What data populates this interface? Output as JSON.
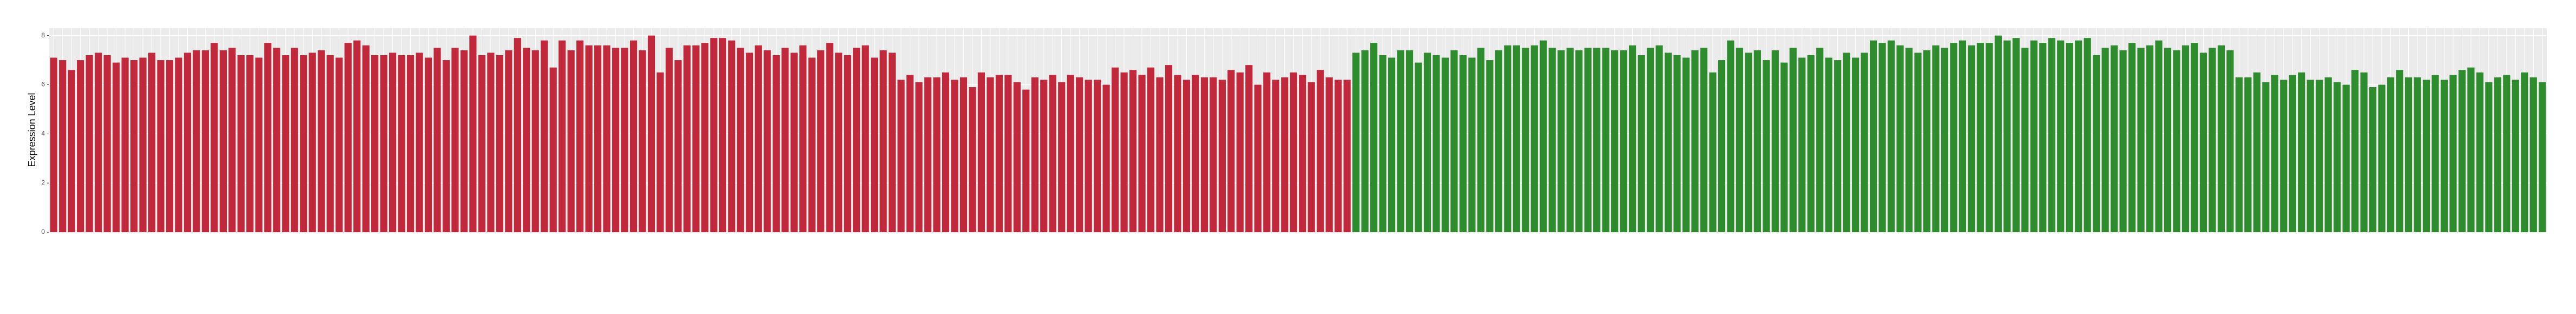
{
  "chart_data": {
    "type": "bar",
    "y_label": "Expression Level",
    "ylim": [
      0,
      8.3
    ],
    "yticks": [
      0,
      2,
      4,
      6,
      8
    ],
    "grid": true,
    "groups": [
      {
        "color": "#c0283c",
        "values": [
          7.1,
          7.0,
          6.6,
          7.0,
          7.2,
          7.3,
          7.2,
          6.9,
          7.1,
          7.0,
          7.1,
          7.3,
          7.0,
          7.0,
          7.1,
          7.3,
          7.4,
          7.4,
          7.7,
          7.4,
          7.5,
          7.2,
          7.2,
          7.1,
          7.7,
          7.5,
          7.2,
          7.5,
          7.2,
          7.3,
          7.4,
          7.2,
          7.1,
          7.7,
          7.8,
          7.6,
          7.2,
          7.2,
          7.3,
          7.2,
          7.2,
          7.3,
          7.1,
          7.5,
          7.0,
          7.5,
          7.4,
          8.0,
          7.2,
          7.3,
          7.2,
          7.4,
          7.9,
          7.5,
          7.4,
          7.8,
          6.7,
          7.8,
          7.4,
          7.8,
          7.6,
          7.6,
          7.6,
          7.5,
          7.5,
          7.8,
          7.4,
          8.0,
          6.5,
          7.5,
          7.0,
          7.6,
          7.6,
          7.7,
          7.9,
          7.9,
          7.8,
          7.5,
          7.3,
          7.6,
          7.4,
          7.2,
          7.5,
          7.3,
          7.6,
          7.1,
          7.4,
          7.7,
          7.3,
          7.2,
          7.5,
          7.6,
          7.1,
          7.4,
          7.3,
          6.2,
          6.4,
          6.1,
          6.3,
          6.3,
          6.5,
          6.2,
          6.3,
          5.9,
          6.5,
          6.3,
          6.4,
          6.4,
          6.1,
          5.8,
          6.3,
          6.2,
          6.4,
          6.1,
          6.4,
          6.3,
          6.2,
          6.2,
          6.0,
          6.7,
          6.5,
          6.6,
          6.4,
          6.7,
          6.3,
          6.8,
          6.4,
          6.2,
          6.4,
          6.3,
          6.3,
          6.2,
          6.6,
          6.5,
          6.8,
          6.0,
          6.5,
          6.2,
          6.3,
          6.5,
          6.4,
          6.1,
          6.6,
          6.3,
          6.2,
          6.2
        ]
      },
      {
        "color": "#2e8b2e",
        "values": [
          7.3,
          7.4,
          7.7,
          7.2,
          7.1,
          7.4,
          7.4,
          6.9,
          7.3,
          7.2,
          7.1,
          7.4,
          7.2,
          7.1,
          7.5,
          7.0,
          7.4,
          7.6,
          7.6,
          7.5,
          7.6,
          7.8,
          7.5,
          7.4,
          7.5,
          7.4,
          7.5,
          7.5,
          7.5,
          7.4,
          7.4,
          7.6,
          7.2,
          7.5,
          7.6,
          7.3,
          7.2,
          7.1,
          7.4,
          7.5,
          6.5,
          7.0,
          7.8,
          7.5,
          7.3,
          7.4,
          7.0,
          7.4,
          6.9,
          7.5,
          7.1,
          7.2,
          7.5,
          7.1,
          7.0,
          7.3,
          7.1,
          7.3,
          7.8,
          7.7,
          7.8,
          7.6,
          7.5,
          7.3,
          7.4,
          7.6,
          7.5,
          7.7,
          7.8,
          7.6,
          7.7,
          7.7,
          8.0,
          7.8,
          7.9,
          7.5,
          7.8,
          7.7,
          7.9,
          7.8,
          7.7,
          7.8,
          7.9,
          7.2,
          7.5,
          7.6,
          7.4,
          7.7,
          7.5,
          7.6,
          7.8,
          7.5,
          7.4,
          7.6,
          7.7,
          7.3,
          7.5,
          7.6,
          7.4,
          6.3,
          6.3,
          6.5,
          6.1,
          6.4,
          6.2,
          6.4,
          6.5,
          6.2,
          6.2,
          6.3,
          6.1,
          6.0,
          6.6,
          6.5,
          5.9,
          6.0,
          6.3,
          6.6,
          6.3,
          6.3,
          6.2,
          6.4,
          6.2,
          6.4,
          6.6,
          6.7,
          6.5,
          6.1,
          6.3,
          6.4,
          6.2,
          6.5,
          6.3,
          6.1
        ]
      }
    ]
  }
}
